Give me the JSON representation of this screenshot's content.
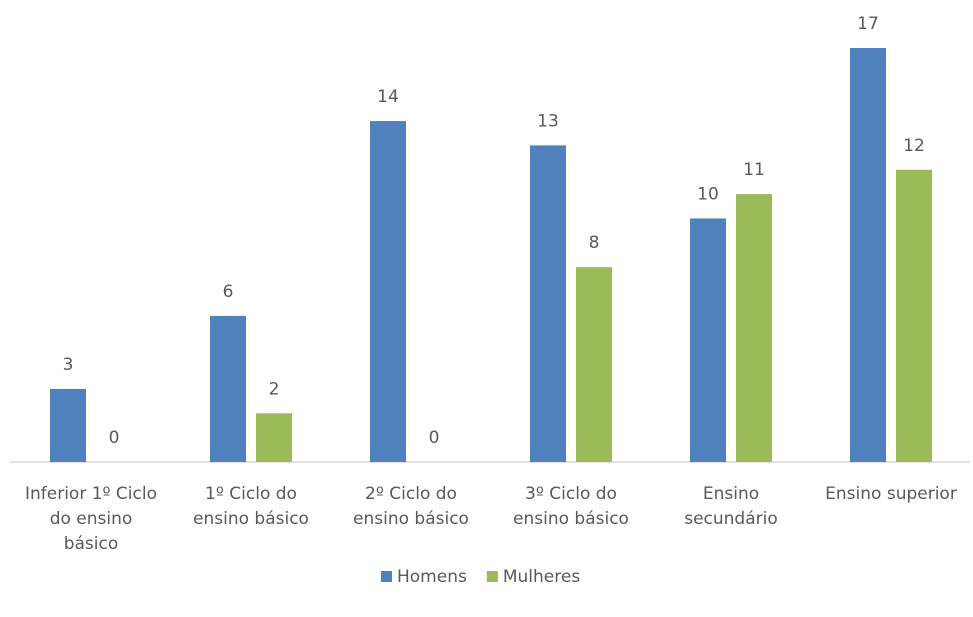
{
  "chart_data": {
    "type": "bar",
    "categories": [
      "Inferior 1º Ciclo do ensino básico",
      "1º Ciclo do ensino básico",
      "2º Ciclo do ensino básico",
      "3º Ciclo do ensino básico",
      "Ensino secundário",
      "Ensino superior"
    ],
    "series": [
      {
        "name": "Homens",
        "color": "#4f81bd",
        "values": [
          3,
          6,
          14,
          13,
          10,
          17
        ]
      },
      {
        "name": "Mulheres",
        "color": "#9bbb59",
        "values": [
          0,
          2,
          0,
          8,
          11,
          12
        ]
      }
    ],
    "legend": "bottom"
  }
}
